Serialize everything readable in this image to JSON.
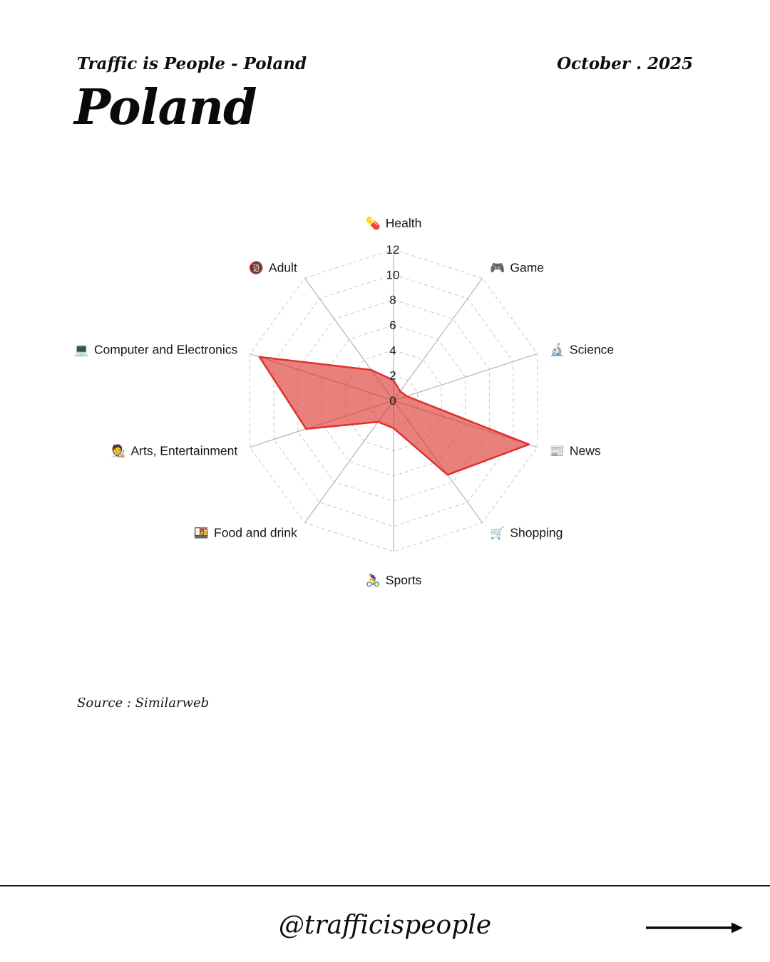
{
  "header": {
    "brand": "Traffic is People - Poland",
    "date": "October . 2025",
    "title": "Poland"
  },
  "source_note": "Source : Similarweb",
  "footer": {
    "handle": "@trafficispeople"
  },
  "chart_data": {
    "type": "radar",
    "categories": [
      "Health",
      "Game",
      "Science",
      "News",
      "Shopping",
      "Sports",
      "Food and drink",
      "Arts, Entertainment",
      "Computer and Electronics",
      "Adult"
    ],
    "icons": [
      "💊",
      "🎮",
      "🔬",
      "📰",
      "🛒",
      "🚴‍♀️",
      "🍱",
      "🧑‍🎨",
      "💻",
      "🔞"
    ],
    "values": [
      1.6,
      0.9,
      1.1,
      11.3,
      7.3,
      2.2,
      2.1,
      7.3,
      11.2,
      3.0
    ],
    "radial_ticks": [
      0,
      2,
      4,
      6,
      8,
      10,
      12
    ],
    "rlim": [
      0,
      12
    ],
    "start_angle_deg": 90,
    "direction": "clockwise",
    "legend": "none",
    "grid": {
      "rings_dashed": true,
      "ring_color": "#c9c9c9",
      "spoke_color": "#b5b5b5"
    },
    "series_fill_color": "rgba(218,50,44,0.62)",
    "series_line_color": "#e0312b",
    "tick_label_color": "#1a1a1a"
  }
}
